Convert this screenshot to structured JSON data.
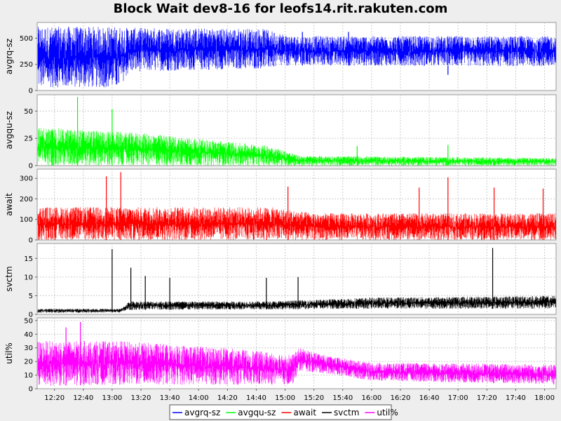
{
  "chart_data": {
    "type": "area",
    "title": "Block Wait dev8-16 for leofs14.rit.rakuten.com",
    "x_ticks": [
      "12:20",
      "12:40",
      "13:00",
      "13:20",
      "13:40",
      "14:00",
      "14:20",
      "14:40",
      "15:00",
      "15:20",
      "15:40",
      "16:00",
      "16:20",
      "16:40",
      "17:00",
      "17:20",
      "17:40",
      "18:00"
    ],
    "x_range": [
      "12:08",
      "18:08"
    ],
    "grid": true,
    "legend_position": "bottom",
    "series": [
      {
        "name": "avgrq-sz",
        "color": "#0000ff",
        "ylabel": "avgrq-sz",
        "yticks": [
          0,
          250,
          500
        ],
        "ylim": [
          0,
          650
        ],
        "profile": [
          {
            "t": "12:08",
            "lo": 30,
            "hi": 610
          },
          {
            "t": "13:05",
            "lo": 30,
            "hi": 610
          },
          {
            "t": "13:12",
            "lo": 180,
            "hi": 600
          },
          {
            "t": "14:45",
            "lo": 210,
            "hi": 590
          },
          {
            "t": "15:05",
            "lo": 240,
            "hi": 520
          },
          {
            "t": "18:08",
            "lo": 230,
            "hi": 520
          }
        ],
        "spikes": [
          {
            "t": "15:12",
            "v": 560
          },
          {
            "t": "15:44",
            "v": 560
          },
          {
            "t": "16:53",
            "v": 150
          }
        ]
      },
      {
        "name": "avgqu-sz",
        "color": "#00ff00",
        "ylabel": "avgqu-sz",
        "yticks": [
          0,
          25,
          50
        ],
        "ylim": [
          0,
          65
        ],
        "profile": [
          {
            "t": "12:08",
            "lo": 0,
            "hi": 35
          },
          {
            "t": "13:20",
            "lo": 0,
            "hi": 30
          },
          {
            "t": "14:50",
            "lo": 0,
            "hi": 18
          },
          {
            "t": "15:10",
            "lo": 0,
            "hi": 9
          },
          {
            "t": "18:08",
            "lo": 0,
            "hi": 7
          }
        ],
        "spikes": [
          {
            "t": "12:36",
            "v": 63
          },
          {
            "t": "13:00",
            "v": 52
          },
          {
            "t": "15:50",
            "v": 18
          },
          {
            "t": "16:53",
            "v": 19
          }
        ]
      },
      {
        "name": "await",
        "color": "#ff0000",
        "ylabel": "await",
        "yticks": [
          0,
          100,
          200,
          300
        ],
        "ylim": [
          0,
          345
        ],
        "profile": [
          {
            "t": "12:08",
            "lo": 0,
            "hi": 160
          },
          {
            "t": "14:50",
            "lo": 0,
            "hi": 160
          },
          {
            "t": "15:20",
            "lo": 0,
            "hi": 130
          },
          {
            "t": "18:08",
            "lo": 0,
            "hi": 130
          }
        ],
        "spikes": [
          {
            "t": "12:56",
            "v": 310
          },
          {
            "t": "13:06",
            "v": 330
          },
          {
            "t": "15:02",
            "v": 260
          },
          {
            "t": "16:33",
            "v": 255
          },
          {
            "t": "16:53",
            "v": 305
          },
          {
            "t": "17:25",
            "v": 255
          },
          {
            "t": "17:59",
            "v": 250
          }
        ]
      },
      {
        "name": "svctm",
        "color": "#000000",
        "ylabel": "svctm",
        "yticks": [
          0,
          5,
          10,
          15
        ],
        "ylim": [
          0,
          19
        ],
        "profile": [
          {
            "t": "12:08",
            "lo": 0.4,
            "hi": 1.5
          },
          {
            "t": "13:06",
            "lo": 0.5,
            "hi": 1.5
          },
          {
            "t": "13:12",
            "lo": 1.2,
            "hi": 3.5
          },
          {
            "t": "14:50",
            "lo": 1.3,
            "hi": 3.5
          },
          {
            "t": "16:00",
            "lo": 1.5,
            "hi": 4.5
          },
          {
            "t": "18:08",
            "lo": 1.5,
            "hi": 5
          }
        ],
        "spikes": [
          {
            "t": "13:00",
            "v": 17.5
          },
          {
            "t": "13:13",
            "v": 12.5
          },
          {
            "t": "13:23",
            "v": 10.3
          },
          {
            "t": "13:40",
            "v": 9.8
          },
          {
            "t": "14:47",
            "v": 9.8
          },
          {
            "t": "15:09",
            "v": 10
          },
          {
            "t": "17:24",
            "v": 17.8
          }
        ]
      },
      {
        "name": "util%",
        "color": "#ff00ff",
        "ylabel": "util%",
        "yticks": [
          0,
          10,
          20,
          30,
          40,
          50
        ],
        "ylim": [
          0,
          52
        ],
        "profile": [
          {
            "t": "12:08",
            "lo": 2,
            "hi": 35
          },
          {
            "t": "13:05",
            "lo": 3,
            "hi": 35
          },
          {
            "t": "14:20",
            "lo": 3,
            "hi": 30
          },
          {
            "t": "15:05",
            "lo": 3,
            "hi": 25
          },
          {
            "t": "15:10",
            "lo": 13,
            "hi": 30
          },
          {
            "t": "15:30",
            "lo": 11,
            "hi": 24
          },
          {
            "t": "16:00",
            "lo": 6,
            "hi": 19
          },
          {
            "t": "18:08",
            "lo": 3,
            "hi": 18
          }
        ],
        "spikes": [
          {
            "t": "12:38",
            "v": 49
          },
          {
            "t": "12:28",
            "v": 45
          }
        ]
      }
    ]
  }
}
